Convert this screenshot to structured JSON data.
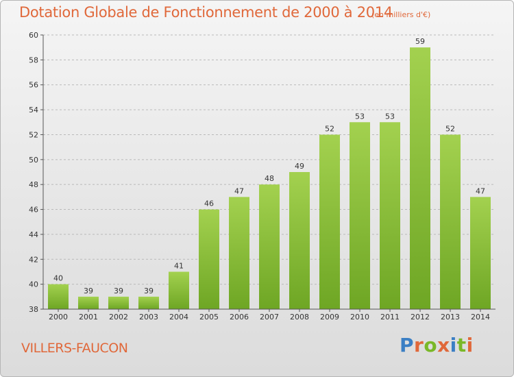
{
  "header": {
    "title": "Dotation Globale de Fonctionnement de 2000 à 2014",
    "unit": "(en milliers d'€)"
  },
  "footer": {
    "commune": "VILLERS-FAUCON",
    "logo_text": "Proxiti",
    "logo_colors": [
      "#3b7fc4",
      "#e0683a",
      "#7ab828",
      "#e0683a",
      "#3b7fc4",
      "#7ab828",
      "#e0683a"
    ]
  },
  "colors": {
    "bar_light": "#a3d14f",
    "bar_dark": "#6ea624",
    "grid": "#b9b9b9",
    "axis": "#555555",
    "label": "#333333"
  },
  "chart_data": {
    "type": "bar",
    "categories": [
      "2000",
      "2001",
      "2002",
      "2003",
      "2004",
      "2005",
      "2006",
      "2007",
      "2008",
      "2009",
      "2010",
      "2011",
      "2012",
      "2013",
      "2014"
    ],
    "values": [
      40,
      39,
      39,
      39,
      41,
      46,
      47,
      48,
      49,
      52,
      53,
      53,
      59,
      52,
      47
    ],
    "ylim": [
      38,
      60
    ],
    "yticks": [
      38,
      40,
      42,
      44,
      46,
      48,
      50,
      52,
      54,
      56,
      58,
      60
    ],
    "grid": true,
    "grid_style": "dashed horizontal",
    "data_labels": true
  }
}
